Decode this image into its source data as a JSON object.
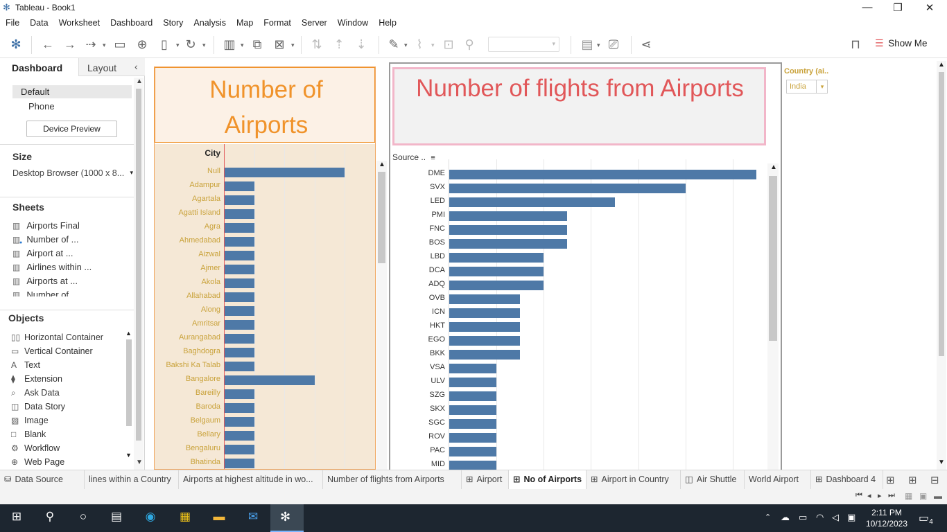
{
  "window": {
    "title": "Tableau - Book1",
    "controls": [
      "minimize-icon",
      "restore-icon",
      "close-icon"
    ]
  },
  "menu": [
    "File",
    "Data",
    "Worksheet",
    "Dashboard",
    "Story",
    "Analysis",
    "Map",
    "Format",
    "Server",
    "Window",
    "Help"
  ],
  "toolbar": {
    "show_me_label": "Show Me"
  },
  "left_pane": {
    "tabs": {
      "dashboard": "Dashboard",
      "layout": "Layout"
    },
    "devices": {
      "default": "Default",
      "phone": "Phone"
    },
    "device_preview_label": "Device Preview",
    "size_heading": "Size",
    "size_value": "Desktop Browser (1000 x 8...",
    "sheets_heading": "Sheets",
    "sheets": [
      "Airports Final",
      "Number of ...",
      "Airport at ...",
      "Airlines within ...",
      "Airports at ...",
      "Number of ..."
    ],
    "objects_heading": "Objects",
    "objects": [
      {
        "label": "Horizontal Container",
        "icon": "horizontal-container-icon"
      },
      {
        "label": "Vertical Container",
        "icon": "vertical-container-icon"
      },
      {
        "label": "Text",
        "icon": "text-icon"
      },
      {
        "label": "Extension",
        "icon": "extension-icon"
      },
      {
        "label": "Ask Data",
        "icon": "ask-data-icon"
      },
      {
        "label": "Data Story",
        "icon": "data-story-icon"
      },
      {
        "label": "Image",
        "icon": "image-icon"
      },
      {
        "label": "Blank",
        "icon": "blank-icon"
      },
      {
        "label": "Workflow",
        "icon": "workflow-icon"
      },
      {
        "label": "Web Page",
        "icon": "web-page-icon"
      }
    ]
  },
  "dashboard": {
    "left_title": "Number of Airports",
    "left_title_color": "#f0932b",
    "left_bg": "#f5e8d6",
    "right_title": "Number of flights from Airports",
    "right_title_color": "#e15759",
    "filter": {
      "label": "Country (ai..",
      "value": "India"
    },
    "colors": {
      "bar": "#4e79a7",
      "axis_label": "#c9a23a"
    }
  },
  "chart_data": [
    {
      "type": "bar",
      "orientation": "horizontal",
      "ylabel": "City",
      "categories": [
        "Null",
        "Adampur",
        "Agartala",
        "Agatti Island",
        "Agra",
        "Ahmedabad",
        "Aizwal",
        "Ajmer",
        "Akola",
        "Allahabad",
        "Along",
        "Amritsar",
        "Aurangabad",
        "Baghdogra",
        "Bakshi Ka Talab",
        "Bangalore",
        "Bareilly",
        "Baroda",
        "Belgaum",
        "Bellary",
        "Bengaluru",
        "Bhatinda"
      ],
      "values": [
        4,
        1,
        1,
        1,
        1,
        1,
        1,
        1,
        1,
        1,
        1,
        1,
        1,
        1,
        1,
        3,
        1,
        1,
        1,
        1,
        1,
        1
      ],
      "xlim": [
        0,
        5
      ]
    },
    {
      "type": "bar",
      "orientation": "horizontal",
      "ylabel": "Source ..",
      "categories": [
        "DME",
        "SVX",
        "LED",
        "PMI",
        "FNC",
        "BOS",
        "LBD",
        "DCA",
        "ADQ",
        "OVB",
        "ICN",
        "HKT",
        "EGO",
        "BKK",
        "VSA",
        "ULV",
        "SZG",
        "SKX",
        "SGC",
        "ROV",
        "PAC",
        "MID"
      ],
      "values": [
        13,
        10,
        7,
        5,
        5,
        5,
        4,
        4,
        4,
        3,
        3,
        3,
        3,
        3,
        2,
        2,
        2,
        2,
        2,
        2,
        2,
        2
      ],
      "xlim": [
        0,
        13.5
      ]
    }
  ],
  "sheet_tabs": [
    {
      "label": "Data Source",
      "icon": "data-source-icon",
      "active": false
    },
    {
      "label": "lines within a Country",
      "icon": "",
      "active": false
    },
    {
      "label": "Airports at highest altitude in wo...",
      "icon": "",
      "active": false
    },
    {
      "label": "Number of flights from Airports",
      "icon": "",
      "active": false
    },
    {
      "label": "Airport",
      "icon": "grid-icon",
      "active": false
    },
    {
      "label": "No of Airports",
      "icon": "grid-icon",
      "active": true
    },
    {
      "label": "Airport in  Country",
      "icon": "grid-icon",
      "active": false
    },
    {
      "label": "Air Shuttle",
      "icon": "story-icon",
      "active": false
    },
    {
      "label": "World Airport",
      "icon": "",
      "active": false
    },
    {
      "label": "Dashboard 4",
      "icon": "grid-icon",
      "active": false
    }
  ],
  "taskbar": {
    "time": "2:11 PM",
    "date": "10/12/2023",
    "notifications": "4"
  }
}
